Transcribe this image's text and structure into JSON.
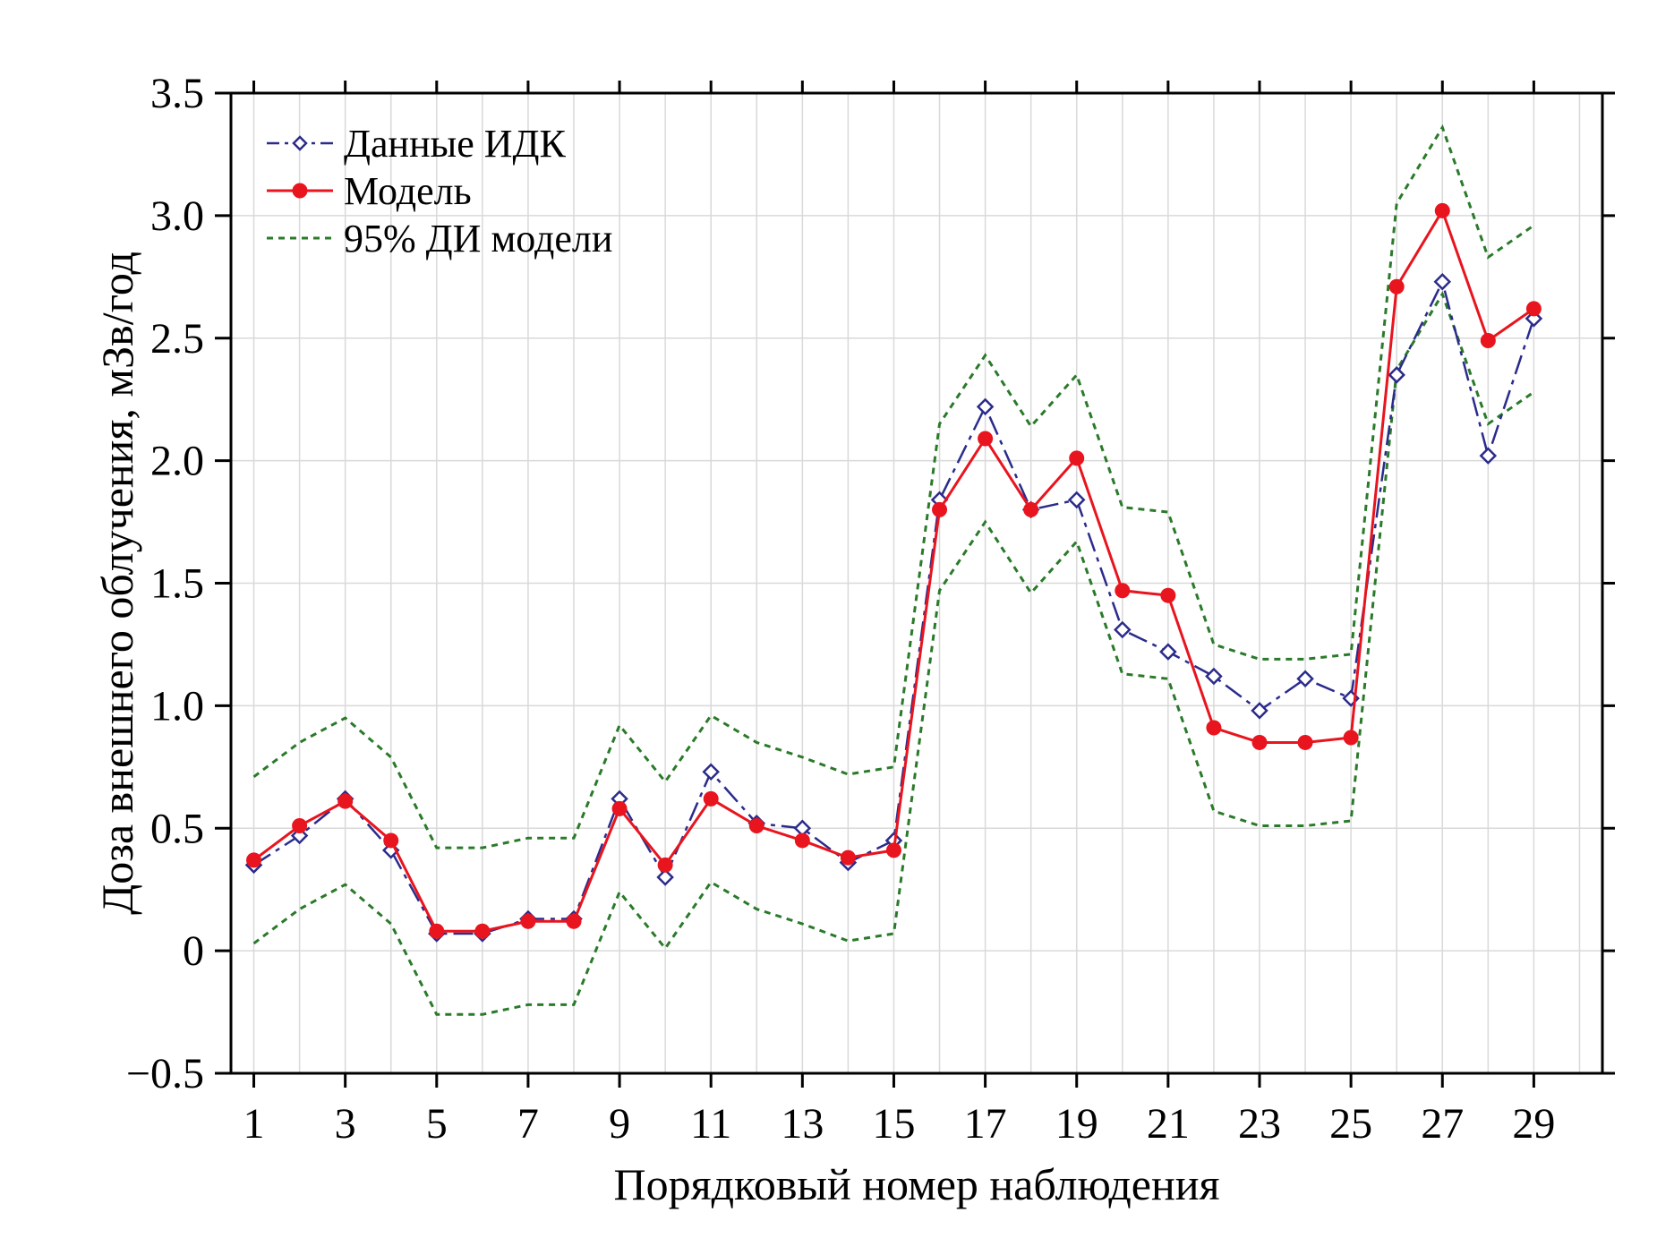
{
  "chart_data": {
    "type": "line",
    "xlabel": "Порядковый номер наблюдения",
    "ylabel": "Доза внешнего облучения, мЗв/год",
    "xlim": [
      0.5,
      30.5
    ],
    "ylim": [
      -0.5,
      3.5
    ],
    "x_ticks": [
      1,
      3,
      5,
      7,
      9,
      11,
      13,
      15,
      17,
      19,
      21,
      23,
      25,
      27,
      29
    ],
    "x_tick_labels": [
      "1",
      "3",
      "5",
      "7",
      "9",
      "11",
      "13",
      "15",
      "17",
      "19",
      "21",
      "23",
      "25",
      "27",
      "29"
    ],
    "y_ticks": [
      -0.5,
      0,
      0.5,
      1.0,
      1.5,
      2.0,
      2.5,
      3.0,
      3.5
    ],
    "y_tick_labels": [
      "−0.5",
      "0",
      "0.5",
      "1.0",
      "1.5",
      "2.0",
      "2.5",
      "3.0",
      "3.5"
    ],
    "grid": true,
    "legend_position": "top-left",
    "x": [
      1,
      2,
      3,
      4,
      5,
      6,
      7,
      8,
      9,
      10,
      11,
      12,
      13,
      14,
      15,
      16,
      17,
      18,
      19,
      20,
      21,
      22,
      23,
      24,
      25,
      26,
      27,
      28,
      29
    ],
    "series": [
      {
        "name": "Данные ИДК",
        "style": "dash-dot line with hollow diamond markers",
        "color": "#2b2b8c",
        "values": [
          0.35,
          0.47,
          0.62,
          0.41,
          0.07,
          0.07,
          0.13,
          0.13,
          0.62,
          0.3,
          0.73,
          0.52,
          0.5,
          0.36,
          0.45,
          1.84,
          2.22,
          1.8,
          1.84,
          1.31,
          1.22,
          1.12,
          0.98,
          1.11,
          1.03,
          2.35,
          2.73,
          2.02,
          2.58
        ]
      },
      {
        "name": "Модель",
        "style": "solid line with filled circle markers",
        "color": "#e8141e",
        "values": [
          0.37,
          0.51,
          0.61,
          0.45,
          0.08,
          0.08,
          0.12,
          0.12,
          0.58,
          0.35,
          0.62,
          0.51,
          0.45,
          0.38,
          0.41,
          1.8,
          2.09,
          1.8,
          2.01,
          1.47,
          1.45,
          0.91,
          0.85,
          0.85,
          0.87,
          2.71,
          3.02,
          2.49,
          2.62
        ]
      },
      {
        "name": "95% ДИ модели",
        "style": "short-dashed line",
        "color": "#2a7a2a",
        "values_upper": [
          0.71,
          0.85,
          0.95,
          0.79,
          0.42,
          0.42,
          0.46,
          0.46,
          0.92,
          0.69,
          0.96,
          0.85,
          0.79,
          0.72,
          0.75,
          2.15,
          2.43,
          2.14,
          2.35,
          1.81,
          1.79,
          1.25,
          1.19,
          1.19,
          1.21,
          3.05,
          3.36,
          2.83,
          2.96
        ],
        "values_lower": [
          0.03,
          0.17,
          0.27,
          0.11,
          -0.26,
          -0.26,
          -0.22,
          -0.22,
          0.24,
          0.01,
          0.28,
          0.17,
          0.11,
          0.04,
          0.07,
          1.47,
          1.75,
          1.46,
          1.67,
          1.13,
          1.11,
          0.57,
          0.51,
          0.51,
          0.53,
          2.37,
          2.68,
          2.15,
          2.28
        ]
      }
    ]
  }
}
